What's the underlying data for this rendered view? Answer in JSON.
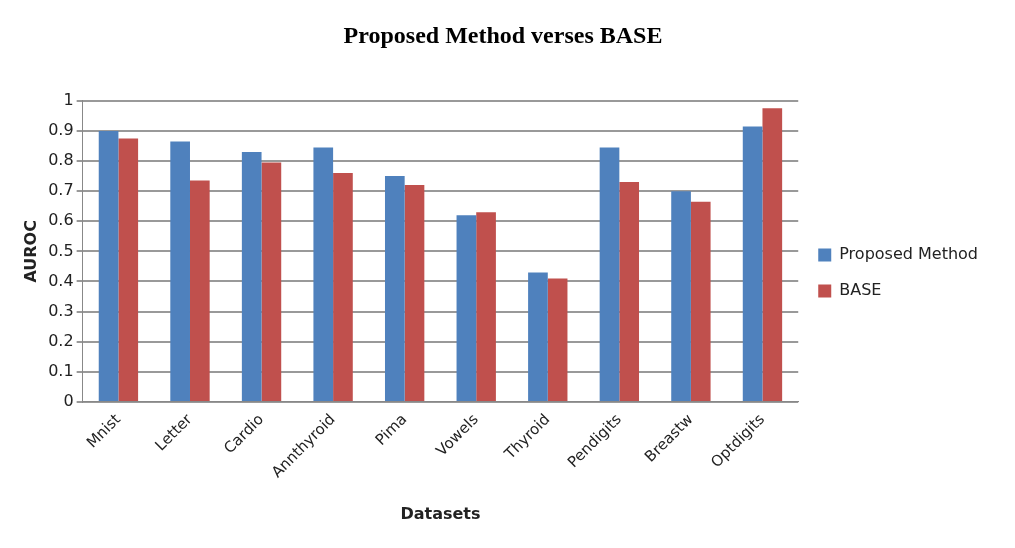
{
  "chart_data": {
    "type": "bar",
    "title": "Proposed Method verses BASE",
    "xlabel": "Datasets",
    "ylabel": "AUROC",
    "categories": [
      "Mnist",
      "Letter",
      "Cardio",
      "Annthyroid",
      "Pima",
      "Vowels",
      "Thyroid",
      "Pendigits",
      "Breastw",
      "Optdigits"
    ],
    "series": [
      {
        "name": "Proposed Method",
        "color": "#4f81bd",
        "values": [
          0.9,
          0.865,
          0.83,
          0.845,
          0.75,
          0.62,
          0.43,
          0.845,
          0.7,
          0.915
        ]
      },
      {
        "name": "BASE",
        "color": "#c0504d",
        "values": [
          0.875,
          0.735,
          0.795,
          0.76,
          0.72,
          0.63,
          0.41,
          0.73,
          0.665,
          0.975
        ]
      }
    ],
    "ylim": [
      0,
      1
    ],
    "yticks": [
      0,
      0.1,
      0.2,
      0.3,
      0.4,
      0.5,
      0.6,
      0.7,
      0.8,
      0.9,
      1
    ],
    "grid": "y",
    "legend": "right"
  }
}
